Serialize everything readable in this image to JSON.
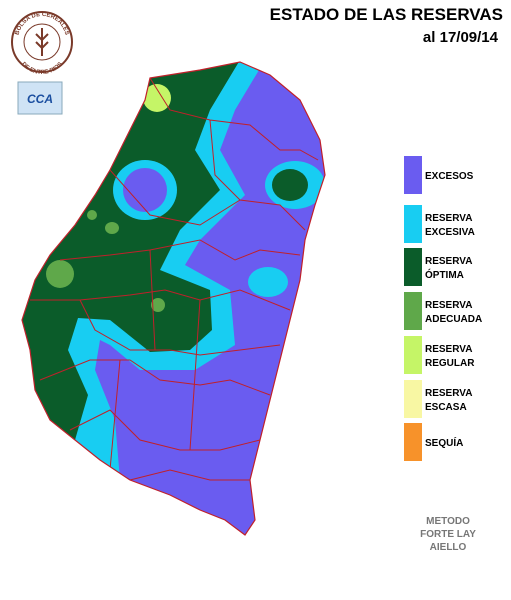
{
  "header": {
    "title": "ESTADO DE LAS RESERVAS",
    "date": "al 17/09/14"
  },
  "logos": {
    "seal_top": "BOLSA DE CEREALES",
    "seal_bottom": "DE ENTRE RIOS",
    "badge": "CCA"
  },
  "legend": [
    {
      "lines": [
        "EXCESOS"
      ],
      "color": "#6a5cf0"
    },
    {
      "lines": [
        "RESERVA",
        "EXCESIVA"
      ],
      "color": "#18cdf2"
    },
    {
      "lines": [
        "RESERVA",
        "ÓPTIMA"
      ],
      "color": "#0b5c2a"
    },
    {
      "lines": [
        "RESERVA",
        "ADECUADA"
      ],
      "color": "#5fa84a"
    },
    {
      "lines": [
        "RESERVA",
        "REGULAR"
      ],
      "color": "#c5f567"
    },
    {
      "lines": [
        "RESERVA",
        "ESCASA"
      ],
      "color": "#f8f7a3"
    },
    {
      "lines": [
        "SEQUÍA"
      ],
      "color": "#f7922a"
    }
  ],
  "method": [
    "METODO",
    "FORTE LAY",
    "AIELLO"
  ]
}
